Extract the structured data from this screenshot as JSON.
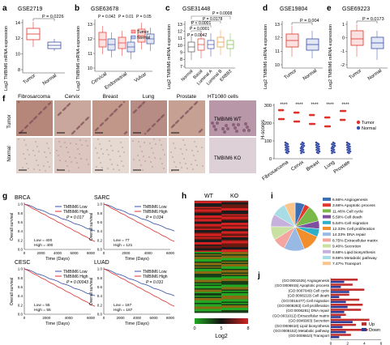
{
  "panels": {
    "a": {
      "letter": "a",
      "title": "GSE2719",
      "ylabel": "Log2 TMBIM6 mRNA expression",
      "cats": [
        "Tumor",
        "Normal"
      ],
      "yticks": [
        "14",
        "12",
        "10",
        "8"
      ],
      "p": "P = 0.0226"
    },
    "b": {
      "letter": "b",
      "title": "GSE63678",
      "ylabel": "Log2 TMBIM6 mRNA expression",
      "groups": [
        "Cervical",
        "Endometrial",
        "Vulvar"
      ],
      "yticks": [
        "13",
        "12",
        "11",
        "10"
      ],
      "p": [
        "P = 0.042",
        "P = 0.01",
        "P = 0.05"
      ],
      "legend": [
        "Tumor",
        "Normal"
      ]
    },
    "c": {
      "letter": "c",
      "title": "GSE31448",
      "ylabel": "Log2 TMBIM6 mRNA expression",
      "cats": [
        "Normal",
        "Basal",
        "Luminal A",
        "Luminal B",
        "ERBB2"
      ],
      "yticks": [
        "13",
        "12",
        "11",
        "10",
        "9",
        "8",
        "7"
      ],
      "p": [
        "P = 0.0008",
        "P = 0.0178",
        "P < 0.0001",
        "P = 0.0001",
        "P = 0.0042"
      ]
    },
    "d": {
      "letter": "d",
      "title": "GSE19804",
      "ylabel": "Log2 TMBIM6 mRNA expression",
      "cats": [
        "Tumor",
        "Normal"
      ],
      "yticks": [
        "13",
        "12",
        "11",
        "10"
      ],
      "p": "P = 0.004"
    },
    "e": {
      "letter": "e",
      "title": "GSE69223",
      "ylabel": "Log2 TMBIM6 mRNA expression",
      "cats": [
        "Tumor",
        "Normal"
      ],
      "yticks": [
        "1",
        "0",
        "-1",
        "-2"
      ],
      "p": "P = 0.0173"
    },
    "f": {
      "letter": "f",
      "tissues": [
        "Fibrosarcoma",
        "Cervix",
        "Breast",
        "Lung",
        "Prostate"
      ],
      "rows": [
        "Tumor",
        "Normal"
      ],
      "cells_title": "HT1080 cells",
      "cells_labels": [
        "TMBIM6 WT",
        "TMBIM6 KO"
      ],
      "ylabel": "H-scores",
      "yticks": [
        "300",
        "200",
        "100",
        "0"
      ],
      "sig": "****",
      "legend": [
        "Tumor",
        "Normal"
      ]
    },
    "g": {
      "letter": "g",
      "plots": [
        {
          "title": "BRCA",
          "legend": [
            "TMBIM6 Low",
            "TMBIM6 High"
          ],
          "p": "P = 0.017",
          "low": "Low = 400",
          "high": "High = 400",
          "xmax": "8000",
          "xticks": [
            "0",
            "2000",
            "4000",
            "6000",
            "8000"
          ]
        },
        {
          "title": "SARC",
          "legend": [
            "TMBIM6 Low",
            "TMBIM6 High"
          ],
          "p": "P = 0.034",
          "low": "Low = 77",
          "high": "High = 121",
          "xticks": [
            "0",
            "2000",
            "4000",
            "6000"
          ]
        },
        {
          "title": "CESC",
          "legend": [
            "TMBIM6 Low",
            "TMBIM6 High"
          ],
          "p": "P = 0.00043",
          "low": "Low = 55",
          "high": "High = 55",
          "xticks": [
            "0",
            "2000",
            "4000",
            "6000"
          ]
        },
        {
          "title": "LUAD",
          "legend": [
            "TMBIM6 Low",
            "TMBIM6 High"
          ],
          "p": "P = 0.031",
          "low": "Low = 187",
          "high": "High = 187",
          "xticks": [
            "0",
            "2000",
            "4000",
            "6000",
            "8000"
          ]
        }
      ],
      "ylabel": "Overall survival",
      "xlabel": "Time (Days)",
      "yticks": [
        "1.0",
        "0.8",
        "0.6",
        "0.4",
        "0.2",
        "0.0"
      ]
    },
    "h": {
      "letter": "h",
      "cols": [
        "WT",
        "KO"
      ],
      "scale": [
        "0",
        "5",
        "8"
      ],
      "scale_label": "Log2"
    },
    "i": {
      "letter": "i",
      "items": [
        {
          "label": "6.66% Angiogenesis",
          "pct": 6.66,
          "color": "#3b6fb6"
        },
        {
          "label": "3.66% Apoptotic process",
          "pct": 3.66,
          "color": "#e03a2f"
        },
        {
          "label": "11.46% Cell cycle",
          "pct": 11.46,
          "color": "#7bb84a"
        },
        {
          "label": "5.59% Cell death",
          "pct": 5.59,
          "color": "#7d4f9e"
        },
        {
          "label": "5.64% Cell migration",
          "pct": 5.64,
          "color": "#2fb0c8"
        },
        {
          "label": "12.33% Cell proliferation",
          "pct": 12.33,
          "color": "#f28e2b"
        },
        {
          "label": "14.33% DNA repair",
          "pct": 14.33,
          "color": "#98b9e3"
        },
        {
          "label": "8.75% Extracellular matrix",
          "pct": 8.75,
          "color": "#f3a5a0"
        },
        {
          "label": "9.40% Secretion",
          "pct": 9.4,
          "color": "#c8e0a0"
        },
        {
          "label": "8.68% Lipid biosynthesis",
          "pct": 8.68,
          "color": "#c6b0dc"
        },
        {
          "label": "9.69% Metabolic pathway",
          "pct": 9.69,
          "color": "#a8dde6"
        },
        {
          "label": "7.47% Transport",
          "pct": 7.47,
          "color": "#fbc48a"
        }
      ]
    },
    "j": {
      "letter": "j",
      "terms": [
        "(GO:0001525) Angiogenesis",
        "(GO:0006915) Apoptotic process",
        "(GO:0007049) Cell cycle",
        "(GO:0008219) Cell death",
        "(GO:0016477) Cell migration",
        "(GO:0008283) Cell proliferation",
        "(GO:0006281) DNA repair",
        "(GO:0031012) Extracellular matrix",
        "(GO:0046903) Secretion",
        "(GO:0008610) Lipid biosynthesis",
        "(GO:0008152) Metabolic pathway",
        "(GO:0006810) Transport"
      ],
      "up": [
        3.2,
        2.6,
        4.0,
        2.2,
        3.4,
        3.8,
        3.6,
        1.8,
        4.6,
        3.0,
        4.4,
        2.4
      ],
      "down": [
        1.6,
        1.2,
        2.2,
        1.0,
        1.8,
        2.0,
        1.6,
        1.2,
        2.6,
        1.4,
        1.8,
        1.0
      ],
      "xticks": [
        "0",
        "2",
        "4",
        "6"
      ],
      "xlabel": "Significant (%)",
      "legend": [
        "Up",
        "Down"
      ]
    }
  },
  "colors": {
    "tumor": "#e0322c",
    "normal": "#3a4fa8",
    "km_low": "#3a4fa8",
    "km_high": "#e0322c",
    "up": "#c0302f",
    "down": "#2c3e98"
  }
}
